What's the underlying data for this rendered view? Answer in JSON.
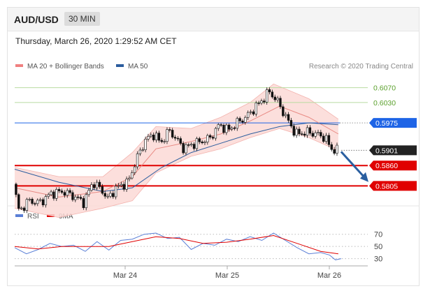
{
  "header": {
    "symbol": "AUD/USD",
    "timeframe": "30 MIN"
  },
  "timestamp": "Thursday, March 26, 2020 1:29:52 AM CET",
  "legend": {
    "bb": {
      "label": "MA 20 + Bollinger Bands",
      "color": "#f08080"
    },
    "ma50": {
      "label": "MA 50",
      "color": "#2c5d9e"
    },
    "rsi": {
      "label": "RSI",
      "color": "#5a7fd6"
    },
    "rsi_ma": {
      "label": "9MA",
      "color": "#e00000"
    }
  },
  "credit": "Research © 2020 Trading Central",
  "colors": {
    "support": "#e00000",
    "resistance_blue": "#1e64e6",
    "target_green": "#5aa02c",
    "price_tag": "#222222",
    "arrow": "#2a5fa0",
    "candle_up": "#ffffff",
    "candle_down": "#111111",
    "band_fill": "#fbd9d6"
  },
  "chart_data": [
    {
      "type": "candlestick",
      "title": "AUD/USD 30 MIN",
      "ylim": [
        0.5755,
        0.6105
      ],
      "x_ticks": [
        "Mar 24",
        "Mar 25",
        "Mar 26"
      ],
      "levels": [
        {
          "value": 0.607,
          "label": "0.6070",
          "style": "green-line"
        },
        {
          "value": 0.603,
          "label": "0.6030",
          "style": "green-line"
        },
        {
          "value": 0.5975,
          "label": "0.5975",
          "style": "blue-line-tag"
        },
        {
          "value": 0.5901,
          "label": "0.5901",
          "style": "last-price-tag"
        },
        {
          "value": 0.586,
          "label": "0.5860",
          "style": "red-line-tag"
        },
        {
          "value": 0.5805,
          "label": "0.5805",
          "style": "red-line-tag"
        }
      ],
      "price_path": [
        {
          "x": 0,
          "y": 0.581
        },
        {
          "x": 4,
          "y": 0.5735
        },
        {
          "x": 10,
          "y": 0.5765
        },
        {
          "x": 18,
          "y": 0.576
        },
        {
          "x": 26,
          "y": 0.5785
        },
        {
          "x": 34,
          "y": 0.579
        },
        {
          "x": 42,
          "y": 0.5775
        },
        {
          "x": 48,
          "y": 0.576
        },
        {
          "x": 54,
          "y": 0.5815
        },
        {
          "x": 60,
          "y": 0.5795
        },
        {
          "x": 64,
          "y": 0.577
        },
        {
          "x": 70,
          "y": 0.58
        },
        {
          "x": 78,
          "y": 0.5815
        },
        {
          "x": 84,
          "y": 0.588
        },
        {
          "x": 90,
          "y": 0.593
        },
        {
          "x": 96,
          "y": 0.5945
        },
        {
          "x": 100,
          "y": 0.592
        },
        {
          "x": 106,
          "y": 0.5955
        },
        {
          "x": 110,
          "y": 0.5935
        },
        {
          "x": 116,
          "y": 0.5905
        },
        {
          "x": 120,
          "y": 0.5915
        },
        {
          "x": 128,
          "y": 0.5925
        },
        {
          "x": 134,
          "y": 0.5935
        },
        {
          "x": 140,
          "y": 0.597
        },
        {
          "x": 146,
          "y": 0.5955
        },
        {
          "x": 152,
          "y": 0.5975
        },
        {
          "x": 158,
          "y": 0.599
        },
        {
          "x": 164,
          "y": 0.6015
        },
        {
          "x": 170,
          "y": 0.604
        },
        {
          "x": 174,
          "y": 0.606
        },
        {
          "x": 180,
          "y": 0.603
        },
        {
          "x": 186,
          "y": 0.5985
        },
        {
          "x": 192,
          "y": 0.5945
        },
        {
          "x": 200,
          "y": 0.595
        },
        {
          "x": 206,
          "y": 0.5945
        },
        {
          "x": 212,
          "y": 0.5935
        },
        {
          "x": 216,
          "y": 0.5905
        },
        {
          "x": 220,
          "y": 0.5901
        }
      ],
      "ma20_path": [
        {
          "x": 0,
          "y": 0.58
        },
        {
          "x": 30,
          "y": 0.5775
        },
        {
          "x": 60,
          "y": 0.579
        },
        {
          "x": 80,
          "y": 0.583
        },
        {
          "x": 96,
          "y": 0.5905
        },
        {
          "x": 120,
          "y": 0.5925
        },
        {
          "x": 140,
          "y": 0.5945
        },
        {
          "x": 160,
          "y": 0.598
        },
        {
          "x": 180,
          "y": 0.602
        },
        {
          "x": 200,
          "y": 0.599
        },
        {
          "x": 220,
          "y": 0.5945
        }
      ],
      "bollinger_upper_path": [
        {
          "x": 0,
          "y": 0.5855
        },
        {
          "x": 30,
          "y": 0.583
        },
        {
          "x": 60,
          "y": 0.583
        },
        {
          "x": 80,
          "y": 0.5895
        },
        {
          "x": 96,
          "y": 0.5965
        },
        {
          "x": 120,
          "y": 0.596
        },
        {
          "x": 140,
          "y": 0.599
        },
        {
          "x": 160,
          "y": 0.603
        },
        {
          "x": 176,
          "y": 0.608
        },
        {
          "x": 200,
          "y": 0.604
        },
        {
          "x": 220,
          "y": 0.5985
        }
      ],
      "bollinger_lower_path": [
        {
          "x": 0,
          "y": 0.5745
        },
        {
          "x": 30,
          "y": 0.572
        },
        {
          "x": 60,
          "y": 0.5745
        },
        {
          "x": 80,
          "y": 0.5765
        },
        {
          "x": 96,
          "y": 0.584
        },
        {
          "x": 120,
          "y": 0.5885
        },
        {
          "x": 140,
          "y": 0.5905
        },
        {
          "x": 160,
          "y": 0.5935
        },
        {
          "x": 180,
          "y": 0.596
        },
        {
          "x": 200,
          "y": 0.5935
        },
        {
          "x": 220,
          "y": 0.59
        }
      ],
      "ma50_path": [
        {
          "x": 0,
          "y": 0.585
        },
        {
          "x": 30,
          "y": 0.5815
        },
        {
          "x": 60,
          "y": 0.579
        },
        {
          "x": 80,
          "y": 0.58
        },
        {
          "x": 100,
          "y": 0.5855
        },
        {
          "x": 120,
          "y": 0.5895
        },
        {
          "x": 140,
          "y": 0.592
        },
        {
          "x": 160,
          "y": 0.5945
        },
        {
          "x": 180,
          "y": 0.5965
        },
        {
          "x": 200,
          "y": 0.5975
        },
        {
          "x": 220,
          "y": 0.597
        }
      ],
      "projection_arrow": {
        "from": {
          "x": 220,
          "y": 0.5901
        },
        "to": {
          "x": 240,
          "y": 0.581
        }
      }
    },
    {
      "type": "line",
      "title": "RSI",
      "ylim": [
        25,
        80
      ],
      "y_ticks": [
        70,
        50,
        30
      ],
      "x_ticks": [
        "Mar 24",
        "Mar 25",
        "Mar 26"
      ],
      "series": [
        {
          "name": "RSI",
          "points": [
            {
              "x": 0,
              "y": 48
            },
            {
              "x": 8,
              "y": 38
            },
            {
              "x": 16,
              "y": 45
            },
            {
              "x": 24,
              "y": 55
            },
            {
              "x": 32,
              "y": 50
            },
            {
              "x": 40,
              "y": 52
            },
            {
              "x": 48,
              "y": 42
            },
            {
              "x": 56,
              "y": 58
            },
            {
              "x": 64,
              "y": 44
            },
            {
              "x": 72,
              "y": 60
            },
            {
              "x": 80,
              "y": 62
            },
            {
              "x": 88,
              "y": 70
            },
            {
              "x": 96,
              "y": 72
            },
            {
              "x": 104,
              "y": 63
            },
            {
              "x": 112,
              "y": 65
            },
            {
              "x": 120,
              "y": 45
            },
            {
              "x": 128,
              "y": 55
            },
            {
              "x": 136,
              "y": 52
            },
            {
              "x": 144,
              "y": 62
            },
            {
              "x": 152,
              "y": 58
            },
            {
              "x": 160,
              "y": 66
            },
            {
              "x": 168,
              "y": 60
            },
            {
              "x": 176,
              "y": 72
            },
            {
              "x": 184,
              "y": 60
            },
            {
              "x": 192,
              "y": 48
            },
            {
              "x": 200,
              "y": 38
            },
            {
              "x": 208,
              "y": 40
            },
            {
              "x": 214,
              "y": 36
            },
            {
              "x": 218,
              "y": 28
            },
            {
              "x": 222,
              "y": 30
            }
          ]
        },
        {
          "name": "9MA",
          "points": [
            {
              "x": 0,
              "y": 50
            },
            {
              "x": 16,
              "y": 46
            },
            {
              "x": 32,
              "y": 50
            },
            {
              "x": 48,
              "y": 50
            },
            {
              "x": 64,
              "y": 50
            },
            {
              "x": 80,
              "y": 58
            },
            {
              "x": 96,
              "y": 66
            },
            {
              "x": 112,
              "y": 63
            },
            {
              "x": 128,
              "y": 55
            },
            {
              "x": 144,
              "y": 57
            },
            {
              "x": 160,
              "y": 62
            },
            {
              "x": 176,
              "y": 68
            },
            {
              "x": 192,
              "y": 55
            },
            {
              "x": 208,
              "y": 42
            },
            {
              "x": 220,
              "y": 38
            }
          ]
        }
      ]
    }
  ]
}
